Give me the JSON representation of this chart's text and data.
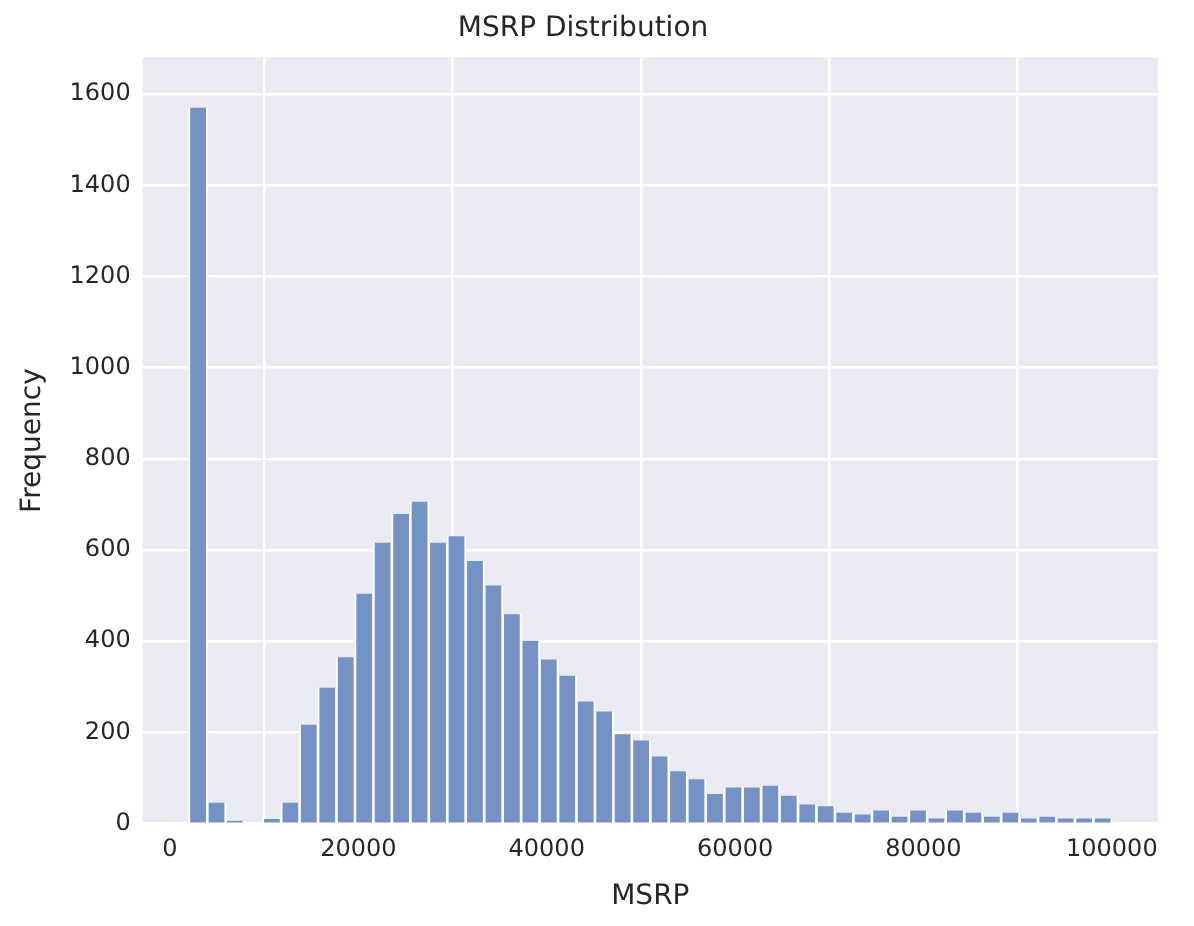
{
  "chart_data": {
    "type": "histogram",
    "title": "MSRP Distribution",
    "xlabel": "MSRP",
    "ylabel": "Frequency",
    "bins": [
      2000,
      3960,
      5920,
      7880,
      9840,
      11800,
      13760,
      15720,
      17680,
      19640,
      21600,
      23560,
      25520,
      27480,
      29440,
      31400,
      33360,
      35320,
      37280,
      39240,
      41200,
      43160,
      45120,
      47080,
      49040,
      51000,
      52960,
      54920,
      56880,
      58840,
      60800,
      62760,
      64720,
      66680,
      68640,
      70600,
      72560,
      74520,
      76480,
      78440,
      80400,
      82360,
      84320,
      86280,
      88240,
      90200,
      92160,
      94120,
      96080,
      98040,
      100000
    ],
    "values": [
      1570,
      46,
      6,
      0,
      10,
      46,
      217,
      298,
      365,
      504,
      616,
      679,
      706,
      616,
      630,
      576,
      522,
      459,
      401,
      360,
      324,
      268,
      246,
      196,
      182,
      147,
      115,
      97,
      65,
      79,
      79,
      83,
      61,
      42,
      38,
      24,
      20,
      29,
      15,
      29,
      11,
      29,
      24,
      15,
      24,
      11,
      15,
      11,
      11,
      11
    ],
    "color": "#7592c4",
    "xlim": [
      -2900,
      104900
    ],
    "ylim": [
      0,
      1680
    ],
    "xticks": [
      0,
      20000,
      40000,
      60000,
      80000,
      100000
    ],
    "yticks": [
      0,
      200,
      400,
      600,
      800,
      1000,
      1200,
      1400,
      1600
    ],
    "grid": true
  }
}
